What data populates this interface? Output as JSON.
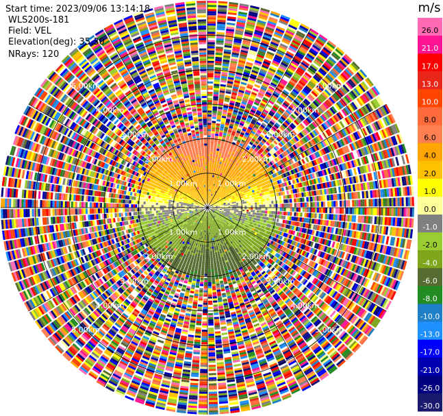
{
  "header": {
    "start_time": "Start time: 2023/09/06 13:14:18",
    "instrument": "WLS200s-181",
    "field": "Field: VEL",
    "elevation": "Elevation(deg): 35.30",
    "nrays": "NRays: 120"
  },
  "chart_data": {
    "type": "heatmap",
    "projection": "polar-ppi",
    "title": "",
    "nrays": 120,
    "elevation_deg": 35.3,
    "range_rings_km": [
      1,
      2,
      3,
      4,
      5
    ],
    "range_ring_labels": [
      "1.00km",
      "2.00km",
      "3.00km",
      "4.00km",
      "5.00km"
    ],
    "max_range_km": 6,
    "valid_range_km": 2.1,
    "units": "m/s",
    "colorbar": {
      "tick_labels": [
        "26.0",
        "21.0",
        "17.0",
        "13.0",
        "10.0",
        "8.0",
        "6.0",
        "4.0",
        "2.0",
        "1.0",
        "0.0",
        "-1.0",
        "-2.0",
        "-4.0",
        "-6.0",
        "-8.0",
        "-10.0",
        "-13.0",
        "-17.0",
        "-21.0",
        "-26.0",
        "-30.0"
      ],
      "colors": [
        "#ff69b4",
        "#ff1493",
        "#ff0000",
        "#e8271a",
        "#ff4500",
        "#ff6a3d",
        "#ff7f50",
        "#ffa500",
        "#ffc000",
        "#ffff00",
        "#ffff9a",
        "#808080",
        "#9acd32",
        "#7ea51c",
        "#556b2f",
        "#228b22",
        "#1e7fc6",
        "#1e90ff",
        "#0000ff",
        "#0000b0",
        "#000080",
        "#191970"
      ]
    },
    "velocity_pattern": {
      "description_values": "positive (receding) velocities to the north, negative (approaching) to the south",
      "north_max_ms": 8,
      "south_min_ms": -6
    }
  }
}
